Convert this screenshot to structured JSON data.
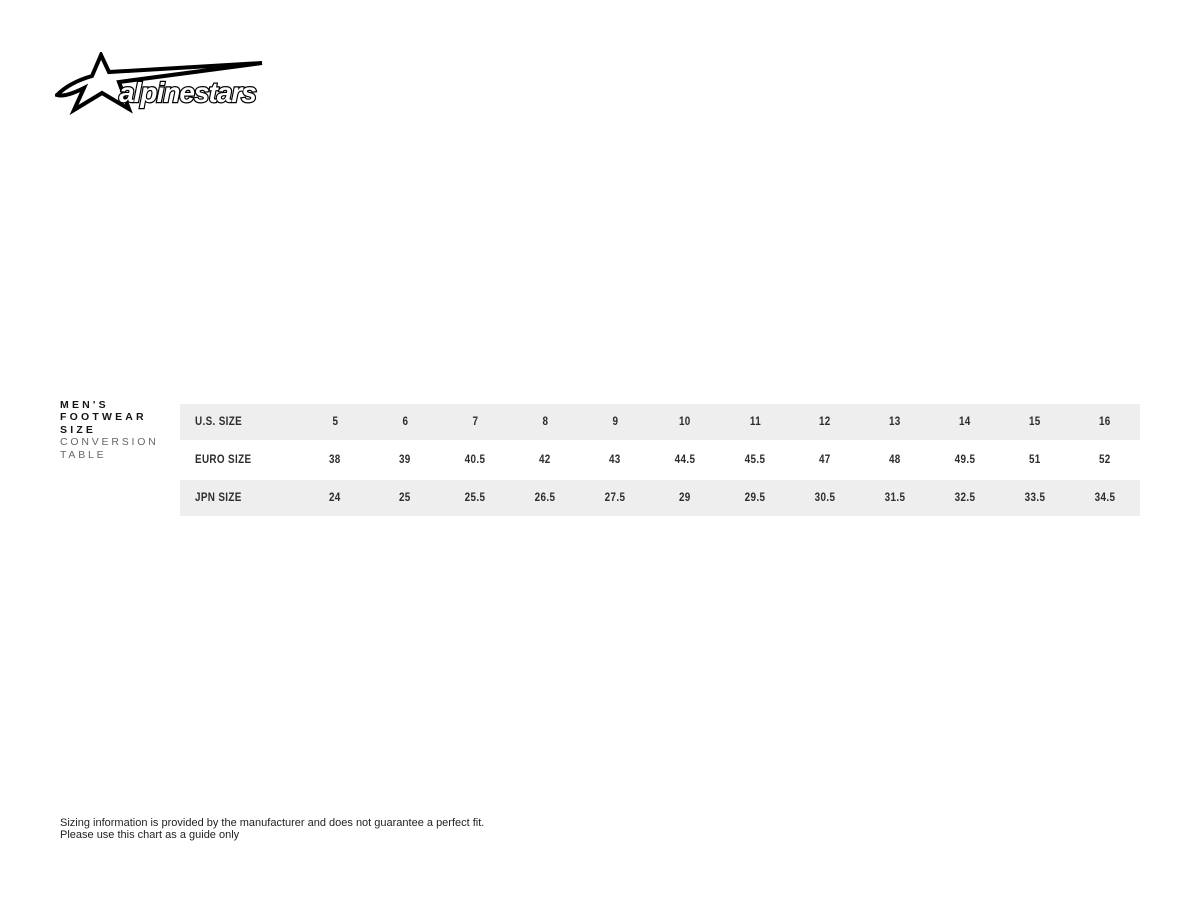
{
  "brand": {
    "logo_text": "alpinestars",
    "logo_color": "#000000"
  },
  "heading": {
    "bold_lines": [
      "MEN'S",
      "FOOTWEAR",
      "SIZE"
    ],
    "light_lines": [
      "CONVERSION",
      "TABLE"
    ]
  },
  "table": {
    "row_background": "#eeeeee",
    "text_color": "#2d2d2d",
    "rows": [
      {
        "label": "U.S. SIZE",
        "shaded": true,
        "values": [
          "5",
          "6",
          "7",
          "8",
          "9",
          "10",
          "11",
          "12",
          "13",
          "14",
          "15",
          "16"
        ]
      },
      {
        "label": "EURO SIZE",
        "shaded": false,
        "values": [
          "38",
          "39",
          "40.5",
          "42",
          "43",
          "44.5",
          "45.5",
          "47",
          "48",
          "49.5",
          "51",
          "52"
        ]
      },
      {
        "label": "JPN SIZE",
        "shaded": true,
        "values": [
          "24",
          "25",
          "25.5",
          "26.5",
          "27.5",
          "29",
          "29.5",
          "30.5",
          "31.5",
          "32.5",
          "33.5",
          "34.5"
        ]
      }
    ]
  },
  "footer": {
    "line1": "Sizing information is provided by the manufacturer and does not guarantee a perfect fit.",
    "line2": "Please use this chart as a guide only"
  },
  "chart_data": {
    "type": "table",
    "title": "MEN'S FOOTWEAR SIZE CONVERSION TABLE",
    "row_headers": [
      "U.S. SIZE",
      "EURO SIZE",
      "JPN SIZE"
    ],
    "rows": [
      [
        "5",
        "6",
        "7",
        "8",
        "9",
        "10",
        "11",
        "12",
        "13",
        "14",
        "15",
        "16"
      ],
      [
        "38",
        "39",
        "40.5",
        "42",
        "43",
        "44.5",
        "45.5",
        "47",
        "48",
        "49.5",
        "51",
        "52"
      ],
      [
        "24",
        "25",
        "25.5",
        "26.5",
        "27.5",
        "29",
        "29.5",
        "30.5",
        "31.5",
        "32.5",
        "33.5",
        "34.5"
      ]
    ],
    "notes": [
      "Sizing information is provided by the manufacturer and does not guarantee a perfect fit.",
      "Please use this chart as a guide only"
    ]
  }
}
